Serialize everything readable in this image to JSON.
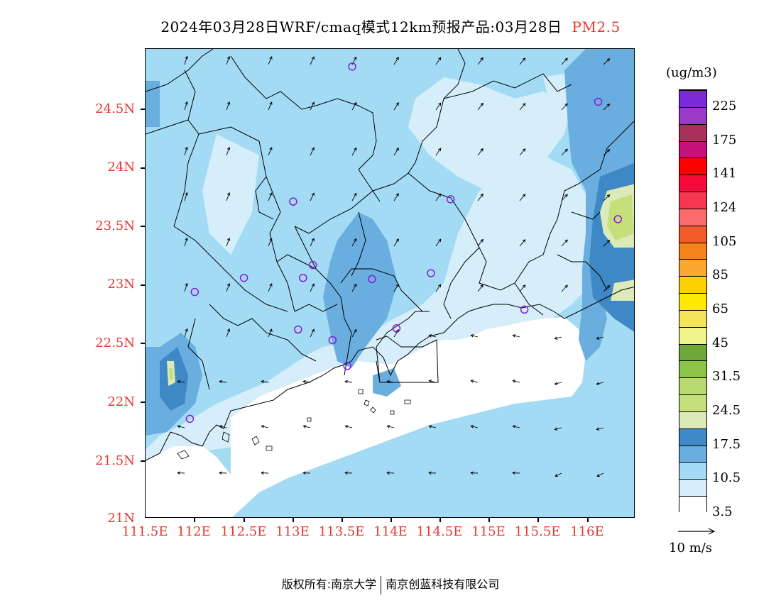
{
  "title": {
    "main": "2024年03月28日WRF/cmaq模式12km预报产品:03月28日",
    "species": "PM2.5"
  },
  "axes": {
    "lat_labels": [
      "24.5N",
      "24N",
      "23.5N",
      "23N",
      "22.5N",
      "22N",
      "21.5N",
      "21N"
    ],
    "lon_labels": [
      "111.5E",
      "112E",
      "112.5E",
      "113E",
      "113.5E",
      "114E",
      "114.5E",
      "115E",
      "115.5E",
      "116E"
    ]
  },
  "legend": {
    "unit": "(ug/m3)",
    "labels": [
      "225",
      "175",
      "141",
      "124",
      "105",
      "85",
      "65",
      "45",
      "31.5",
      "24.5",
      "17.5",
      "10.5",
      "3.5"
    ],
    "colors_bottom_to_top": [
      "#ffffff",
      "#d6eefa",
      "#a3dbf5",
      "#6aaee0",
      "#3d88c5",
      "#dce9b8",
      "#c5df7a",
      "#b7d96e",
      "#8cc44a",
      "#6ea83a",
      "#f0f48a",
      "#f5e35a",
      "#ffe800",
      "#ffd000",
      "#fba830",
      "#f5851a",
      "#f25c2a",
      "#fa6b6b",
      "#f5384f",
      "#f50a3c",
      "#ff0000",
      "#c8107a",
      "#a8305a",
      "#9a3ac8",
      "#7a2ad8"
    ]
  },
  "wind_reference": {
    "label": "10 m/s"
  },
  "stations": [
    {
      "lon": 113.6,
      "lat": 24.85
    },
    {
      "lon": 116.1,
      "lat": 24.55
    },
    {
      "lon": 113.0,
      "lat": 23.7
    },
    {
      "lon": 114.6,
      "lat": 23.72
    },
    {
      "lon": 116.3,
      "lat": 23.55
    },
    {
      "lon": 113.2,
      "lat": 23.16
    },
    {
      "lon": 112.5,
      "lat": 23.05
    },
    {
      "lon": 113.1,
      "lat": 23.05
    },
    {
      "lon": 113.8,
      "lat": 23.04
    },
    {
      "lon": 114.4,
      "lat": 23.09
    },
    {
      "lon": 112.0,
      "lat": 22.93
    },
    {
      "lon": 115.35,
      "lat": 22.78
    },
    {
      "lon": 113.05,
      "lat": 22.61
    },
    {
      "lon": 113.4,
      "lat": 22.52
    },
    {
      "lon": 114.05,
      "lat": 22.62
    },
    {
      "lon": 113.55,
      "lat": 22.3
    },
    {
      "lon": 111.95,
      "lat": 21.85
    }
  ],
  "copyright": {
    "left": "版权所有:南京大学",
    "right": "南京创蓝科技有限公司"
  }
}
